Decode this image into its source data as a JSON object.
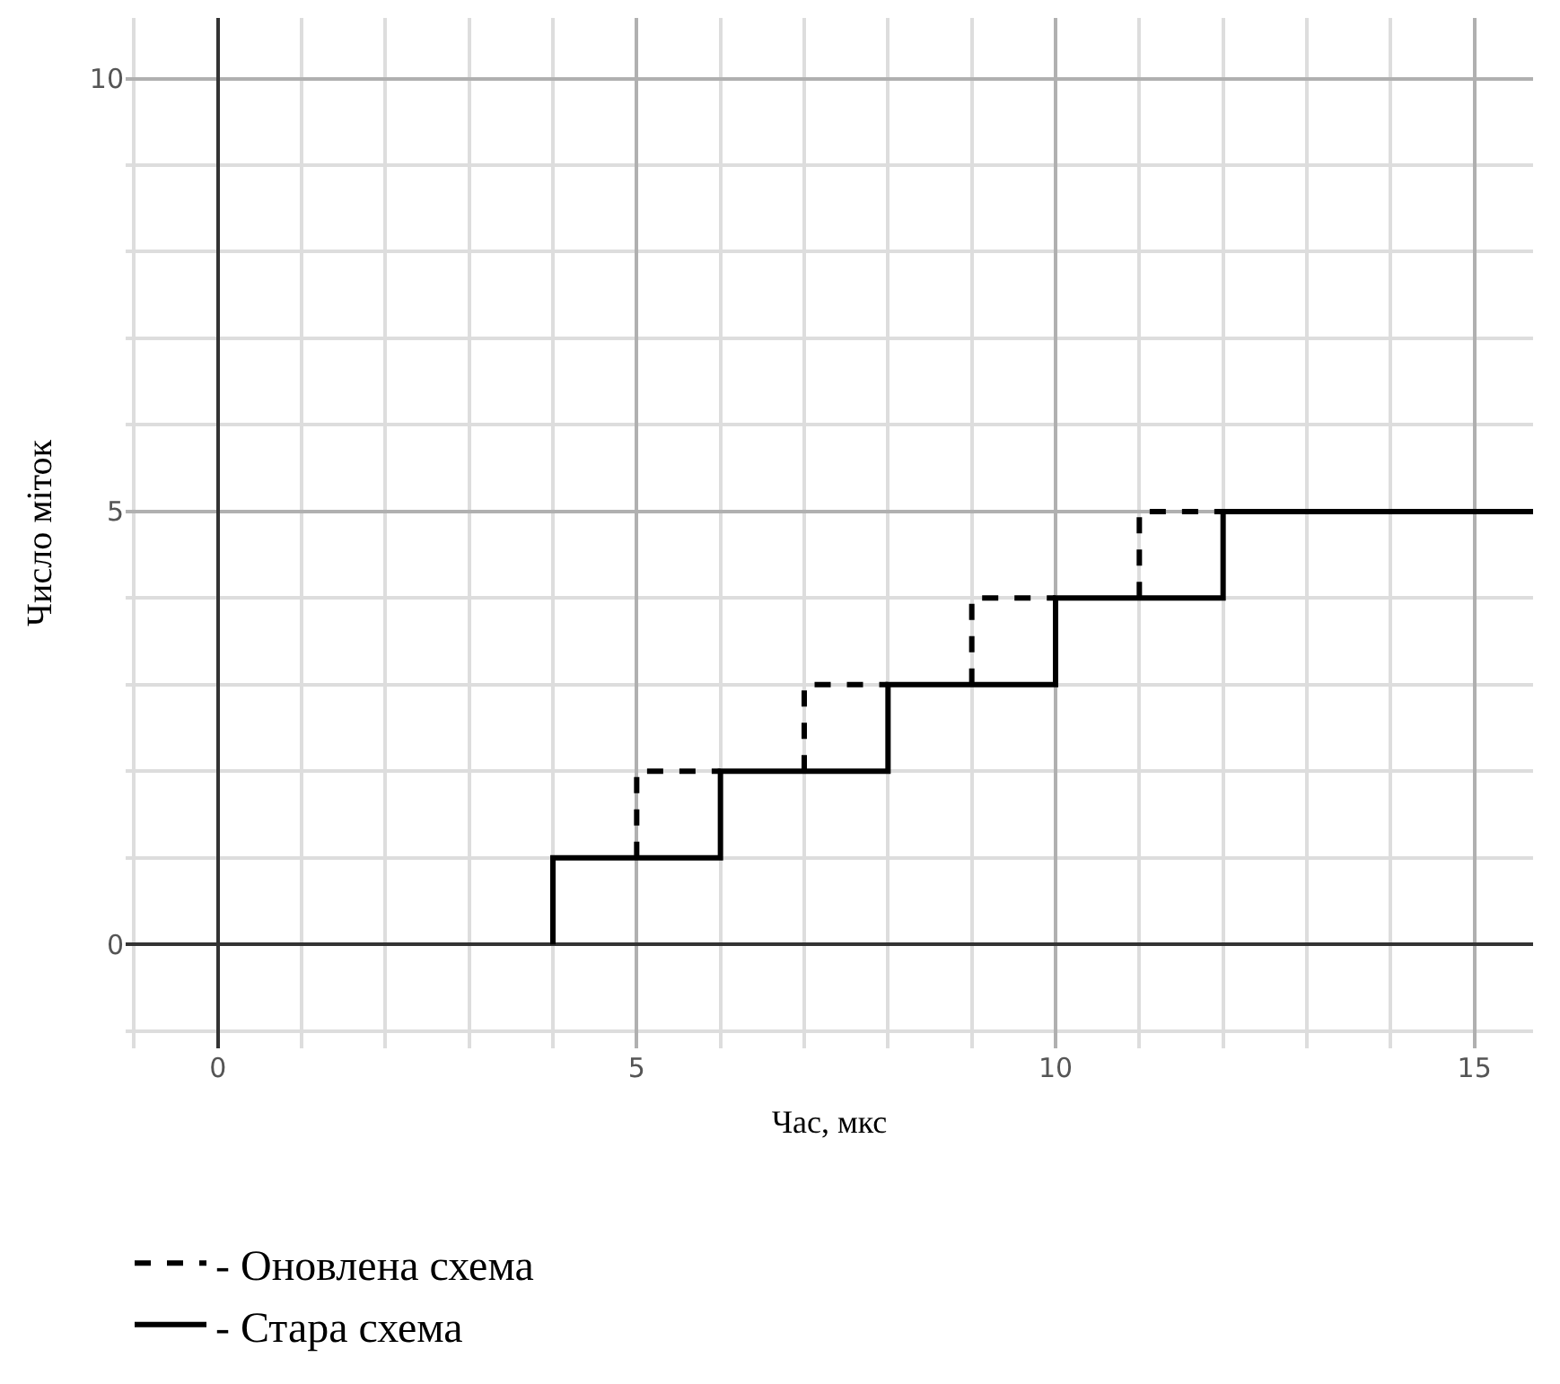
{
  "chart_data": {
    "type": "step",
    "xlabel": "Час, мкс",
    "ylabel": "Число міток",
    "series": [
      {
        "name": "- Оновлена схема",
        "color": "#000000",
        "line_style": "dashed",
        "x": [
          5,
          5,
          6,
          null,
          7,
          7,
          8,
          null,
          9,
          9,
          10,
          null,
          11,
          11,
          12
        ],
        "values": [
          1,
          2,
          2,
          null,
          2,
          3,
          3,
          null,
          3,
          4,
          4,
          null,
          4,
          5,
          5
        ]
      },
      {
        "name": "- Стара схема",
        "color": "#000000",
        "line_style": "solid",
        "x": [
          4,
          4,
          6,
          8,
          10,
          12,
          15.7
        ],
        "values": [
          0,
          1,
          2,
          3,
          4,
          5,
          5
        ]
      }
    ],
    "xlim": [
      -1.1,
      15.7
    ],
    "ylim": [
      -1.2,
      10.7
    ],
    "xticks": [
      0,
      5,
      10,
      15
    ],
    "yticks": [
      0,
      5,
      10
    ],
    "grid": true,
    "legend": "bottom left",
    "marker": "none"
  }
}
